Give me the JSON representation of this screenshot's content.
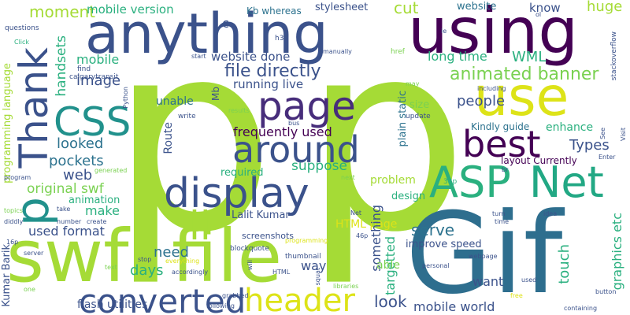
{
  "words": [
    {
      "text": "p",
      "color": "#a5db36"
    },
    {
      "text": "p",
      "color": "#a5db36"
    },
    {
      "text": "swf",
      "color": "#a5db36"
    },
    {
      "text": "file",
      "color": "#a5db36"
    },
    {
      "text": "Gif",
      "color": "#2e6e8e"
    },
    {
      "text": "anything",
      "color": "#3b528b"
    },
    {
      "text": "using",
      "color": "#440154"
    },
    {
      "text": "use",
      "color": "#dde318"
    },
    {
      "text": "page",
      "color": "#472d7b"
    },
    {
      "text": "around",
      "color": "#3b528b"
    },
    {
      "text": "best",
      "color": "#440154"
    },
    {
      "text": "display",
      "color": "#3b528b"
    },
    {
      "text": "ASP",
      "color": "#2ab07f"
    },
    {
      "text": "Net",
      "color": "#22a884"
    },
    {
      "text": "converted",
      "color": "#3b528b"
    },
    {
      "text": "header",
      "color": "#dde318"
    },
    {
      "text": "Thank",
      "color": "#3b528b"
    },
    {
      "text": "CSS",
      "color": "#21918c"
    },
    {
      "text": "li",
      "color": "#a5db36"
    },
    {
      "text": "p",
      "color": "#21918c"
    },
    {
      "text": "moment",
      "color": "#a5db36"
    },
    {
      "text": "mobile version",
      "color": "#2ab07f"
    },
    {
      "text": "cut",
      "color": "#a5db36"
    },
    {
      "text": "stylesheet",
      "color": "#3b528b"
    },
    {
      "text": "website",
      "color": "#2c728e"
    },
    {
      "text": "know",
      "color": "#3b528b"
    },
    {
      "text": "huge",
      "color": "#a5db36"
    },
    {
      "text": "mobile",
      "color": "#2ab07f"
    },
    {
      "text": "handsets",
      "color": "#2ab07f"
    },
    {
      "text": "website done",
      "color": "#3b528b"
    },
    {
      "text": "long time",
      "color": "#2ab07f"
    },
    {
      "text": "WML",
      "color": "#2ab07f"
    },
    {
      "text": "file directly",
      "color": "#3b528b"
    },
    {
      "text": "animated banner",
      "color": "#7ad151"
    },
    {
      "text": "image",
      "color": "#3b528b"
    },
    {
      "text": "running live",
      "color": "#3b528b"
    },
    {
      "text": "people",
      "color": "#3b528b"
    },
    {
      "text": "frequently used",
      "color": "#440154"
    },
    {
      "text": "Kindly guide",
      "color": "#2c728e"
    },
    {
      "text": "enhance",
      "color": "#2ab07f"
    },
    {
      "text": "Types",
      "color": "#3b528b"
    },
    {
      "text": "looked",
      "color": "#2c728e"
    },
    {
      "text": "pockets",
      "color": "#2c728e"
    },
    {
      "text": "unable",
      "color": "#2c728e"
    },
    {
      "text": "Route",
      "color": "#3b528b"
    },
    {
      "text": "web",
      "color": "#3b528b"
    },
    {
      "text": "suppose",
      "color": "#2ab07f"
    },
    {
      "text": "layout Currently",
      "color": "#440154"
    },
    {
      "text": "original swf",
      "color": "#7ad151"
    },
    {
      "text": "required",
      "color": "#2ab07f"
    },
    {
      "text": "problem",
      "color": "#a5db36"
    },
    {
      "text": "make",
      "color": "#2ab07f"
    },
    {
      "text": "animation",
      "color": "#2ab07f"
    },
    {
      "text": "design",
      "color": "#2ab07f"
    },
    {
      "text": "used format",
      "color": "#3b528b"
    },
    {
      "text": "Lalit Kumar",
      "color": "#3b528b"
    },
    {
      "text": "HTML page",
      "color": "#dde318"
    },
    {
      "text": "serve",
      "color": "#2c728e"
    },
    {
      "text": "something",
      "color": "#3b528b"
    },
    {
      "text": "targetted",
      "color": "#2ab07f"
    },
    {
      "text": "graphics etc",
      "color": "#2ab07f"
    },
    {
      "text": "need",
      "color": "#2c728e"
    },
    {
      "text": "screenshots",
      "color": "#3b528b"
    },
    {
      "text": "improve speed",
      "color": "#3b528b"
    },
    {
      "text": "touch",
      "color": "#2ab07f"
    },
    {
      "text": "days",
      "color": "#2ab07f"
    },
    {
      "text": "way",
      "color": "#3b528b"
    },
    {
      "text": "able",
      "color": "#7ad151"
    },
    {
      "text": "want",
      "color": "#3b528b"
    },
    {
      "text": "look",
      "color": "#3b528b"
    },
    {
      "text": "mobile world",
      "color": "#3b528b"
    },
    {
      "text": "flash utilities",
      "color": "#3b528b"
    },
    {
      "text": "Kumar Barik",
      "color": "#3b528b"
    },
    {
      "text": "programming language",
      "color": "#a5db36"
    },
    {
      "text": "plain static",
      "color": "#2c728e"
    },
    {
      "text": "Mb",
      "color": "#3b528b"
    },
    {
      "text": "size",
      "color": "#7ad151"
    },
    {
      "text": "update",
      "color": "#3b528b"
    },
    {
      "text": "32p",
      "color": "#2ab07f"
    },
    {
      "text": "Kb whereas",
      "color": "#2c728e"
    },
    {
      "text": "questions",
      "color": "#3b528b"
    },
    {
      "text": "Click",
      "color": "#2ab07f"
    },
    {
      "text": "find",
      "color": "#3b528b"
    },
    {
      "text": "calgarytransit",
      "color": "#3b528b"
    },
    {
      "text": "Python",
      "color": "#3b528b"
    },
    {
      "text": "write",
      "color": "#3b528b"
    },
    {
      "text": "results",
      "color": "#7ad151"
    },
    {
      "text": "bus",
      "color": "#3b528b"
    },
    {
      "text": "stackoverflow",
      "color": "#3b528b"
    },
    {
      "text": "Visit",
      "color": "#3b528b"
    },
    {
      "text": "See",
      "color": "#3b528b"
    },
    {
      "text": "Enter",
      "color": "#3b528b"
    },
    {
      "text": "including",
      "color": "#3b528b"
    },
    {
      "text": "h3",
      "color": "#3b528b"
    },
    {
      "text": "manually",
      "color": "#3b528b"
    },
    {
      "text": "href",
      "color": "#7ad151"
    },
    {
      "text": "start",
      "color": "#3b528b"
    },
    {
      "text": "c",
      "color": "#3b528b"
    },
    {
      "text": "ie",
      "color": "#3b528b"
    },
    {
      "text": "ol",
      "color": "#3b528b"
    },
    {
      "text": "may",
      "color": "#7ad151"
    },
    {
      "text": "generated",
      "color": "#7ad151"
    },
    {
      "text": "program",
      "color": "#3b528b"
    },
    {
      "text": "topics",
      "color": "#7ad151"
    },
    {
      "text": "diddly",
      "color": "#3b528b"
    },
    {
      "text": "take",
      "color": "#3b528b"
    },
    {
      "text": "number",
      "color": "#3b528b"
    },
    {
      "text": "create",
      "color": "#3b528b"
    },
    {
      "text": "Net",
      "color": "#3b528b"
    },
    {
      "text": "HTML",
      "color": "#3b528b"
    },
    {
      "text": "squat",
      "color": "#3b528b"
    },
    {
      "text": "next",
      "color": "#7ad151"
    },
    {
      "text": "br",
      "color": "#3b528b"
    },
    {
      "text": "turn",
      "color": "#3b528b"
    },
    {
      "text": "idea",
      "color": "#3b528b"
    },
    {
      "text": "time",
      "color": "#3b528b"
    },
    {
      "text": "46p",
      "color": "#3b528b"
    },
    {
      "text": "16p",
      "color": "#3b528b"
    },
    {
      "text": "server",
      "color": "#3b528b"
    },
    {
      "text": "text",
      "color": "#7ad151"
    },
    {
      "text": "stop",
      "color": "#3b528b"
    },
    {
      "text": "everything",
      "color": "#dde318"
    },
    {
      "text": "accordingly",
      "color": "#3b528b"
    },
    {
      "text": "blockquote",
      "color": "#3b528b"
    },
    {
      "text": "thumbnail",
      "color": "#3b528b"
    },
    {
      "text": "will",
      "color": "#3b528b"
    },
    {
      "text": "webpage",
      "color": "#3b528b"
    },
    {
      "text": "personal",
      "color": "#3b528b"
    },
    {
      "text": "used",
      "color": "#3b528b"
    },
    {
      "text": "button",
      "color": "#3b528b"
    },
    {
      "text": "free",
      "color": "#dde318"
    },
    {
      "text": "containing",
      "color": "#3b528b"
    },
    {
      "text": "one",
      "color": "#7ad151"
    },
    {
      "text": "following",
      "color": "#3b528b"
    },
    {
      "text": "grabbed",
      "color": "#3b528b"
    },
    {
      "text": "libraries",
      "color": "#7ad151"
    },
    {
      "text": "programming",
      "color": "#dde318"
    }
  ]
}
